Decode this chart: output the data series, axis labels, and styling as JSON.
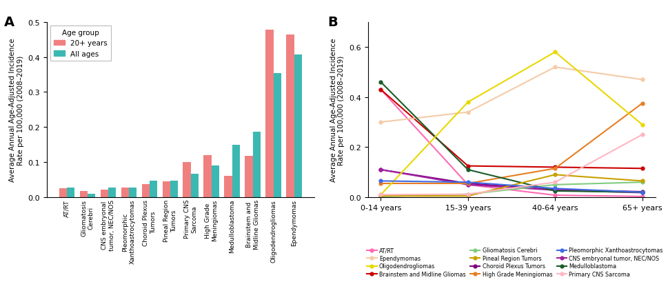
{
  "bar_categories": [
    "AT/RT",
    "Gliomatosis\nCerebri",
    "CNS embryonal\ntumor, NEC/NOS",
    "Pleomorphic\nXanthoastrocytomas",
    "Choroid Plexus\nTumors",
    "Pineal Region\nTumors",
    "Primary CNS\nSarcoma",
    "High Grade\nMeningiomas",
    "Medulloblastoma",
    "Brainstem and\nMidline Gliomas",
    "Oligodendrogliomas",
    "Ependymomas"
  ],
  "bar_20plus": [
    0.025,
    0.018,
    0.022,
    0.027,
    0.037,
    0.046,
    0.1,
    0.12,
    0.06,
    0.118,
    0.477,
    0.465
  ],
  "bar_allages": [
    0.027,
    0.01,
    0.028,
    0.028,
    0.047,
    0.047,
    0.067,
    0.09,
    0.15,
    0.187,
    0.355,
    0.407
  ],
  "bar_color_20plus": "#F08080",
  "bar_color_allages": "#3CB8B2",
  "bar_ylabel": "Average Annual Age-Adjusted Incidence\nRate per 100,000 (2008–2019)",
  "bar_ylim": [
    0,
    0.5
  ],
  "bar_yticks": [
    0.0,
    0.1,
    0.2,
    0.3,
    0.4,
    0.5
  ],
  "panel_A_label": "A",
  "panel_B_label": "B",
  "line_xlabel_ticks": [
    "0-14 years",
    "15-39 years",
    "40-64 years",
    "65+ years"
  ],
  "line_ylabel": "Average Annual Age-Adjusted Incidence\nRate per 100,000 (2008–2019)",
  "line_ylim": [
    0,
    0.7
  ],
  "line_yticks": [
    0.0,
    0.2,
    0.4,
    0.6
  ],
  "line_series": [
    {
      "name": "AT/RT",
      "color": "#FF69B4",
      "values": [
        0.43,
        0.05,
        0.008,
        0.003
      ]
    },
    {
      "name": "Brainstem and Midline Gliomas",
      "color": "#CC0000",
      "values": [
        0.43,
        0.125,
        0.12,
        0.115
      ]
    },
    {
      "name": "Choroid Plexus Tumors",
      "color": "#800080",
      "values": [
        0.11,
        0.055,
        0.03,
        0.022
      ]
    },
    {
      "name": "CNS embryonal tumor, NEC/NOS",
      "color": "#A020A0",
      "values": [
        0.11,
        0.05,
        0.028,
        0.018
      ]
    },
    {
      "name": "Ependymomas",
      "color": "#F5CBA7",
      "values": [
        0.3,
        0.34,
        0.52,
        0.47
      ]
    },
    {
      "name": "Gliomatosis Cerebri",
      "color": "#80CC80",
      "values": [
        0.003,
        0.012,
        0.05,
        0.06
      ]
    },
    {
      "name": "High Grade Meningiomas",
      "color": "#E67E22",
      "values": [
        0.055,
        0.055,
        0.115,
        0.375
      ]
    },
    {
      "name": "Medulloblastoma",
      "color": "#1A5C2A",
      "values": [
        0.46,
        0.11,
        0.025,
        0.02
      ]
    },
    {
      "name": "Oligodendrogliomas",
      "color": "#E8D800",
      "values": [
        0.01,
        0.38,
        0.58,
        0.29
      ]
    },
    {
      "name": "Pineal Region Tumors",
      "color": "#C8A000",
      "values": [
        0.005,
        0.005,
        0.09,
        0.065
      ]
    },
    {
      "name": "Pleomorphic Xanthoastrocytomas",
      "color": "#4169E1",
      "values": [
        0.065,
        0.06,
        0.035,
        0.02
      ]
    },
    {
      "name": "Primary CNS Sarcoma",
      "color": "#FFB6C1",
      "values": [
        0.01,
        0.012,
        0.06,
        0.25
      ]
    }
  ],
  "legend_B_order": [
    "AT/RT",
    "Ependymomas",
    "Oligodendrogliomas",
    "Brainstem and Midline Gliomas",
    "Gliomatosis Cerebri",
    "Pineal Region Tumors",
    "Choroid Plexus Tumors",
    "High Grade Meningiomas",
    "Pleomorphic Xanthoastrocytomas",
    "CNS embryonal tumor, NEC/NOS",
    "Medulloblastoma",
    "Primary CNS Sarcoma"
  ]
}
